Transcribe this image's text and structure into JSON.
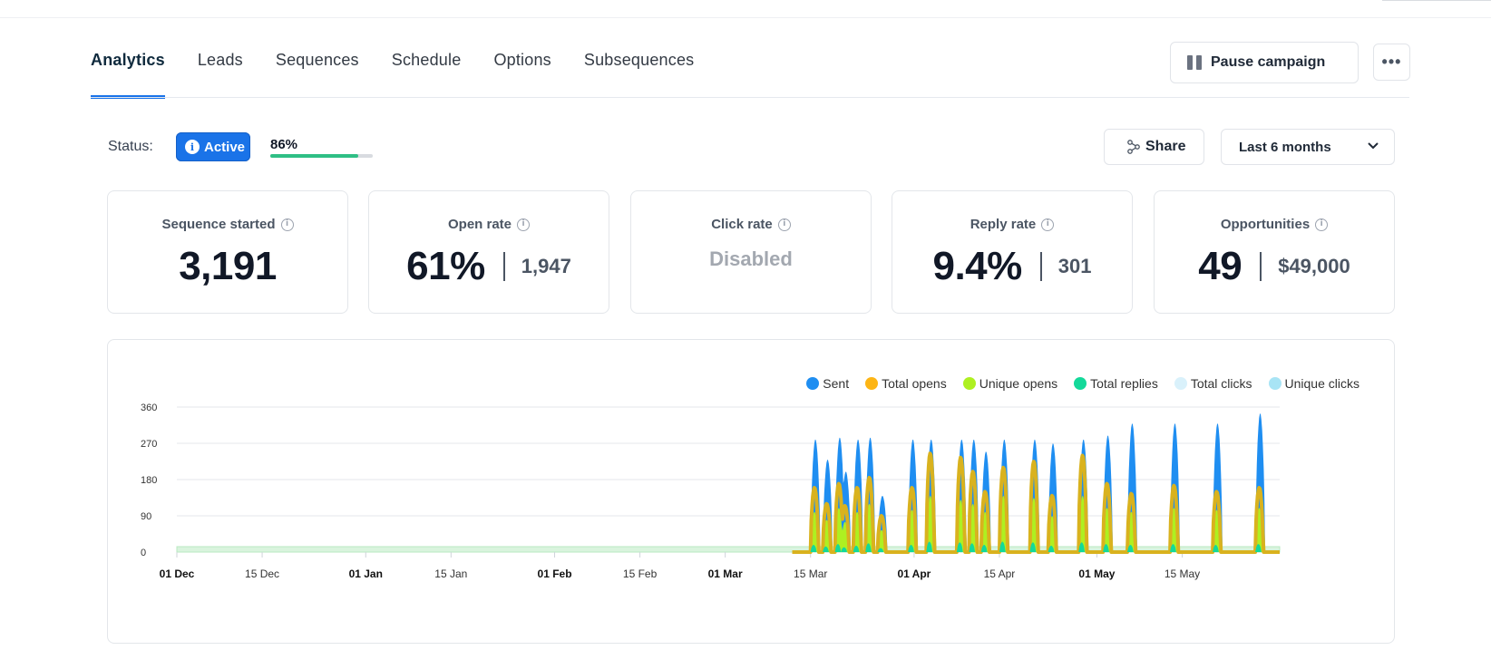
{
  "tabs": [
    {
      "label": "Analytics",
      "active": true
    },
    {
      "label": "Leads",
      "active": false
    },
    {
      "label": "Sequences",
      "active": false
    },
    {
      "label": "Schedule",
      "active": false
    },
    {
      "label": "Options",
      "active": false
    },
    {
      "label": "Subsequences",
      "active": false
    }
  ],
  "header": {
    "pause_label": "Pause campaign",
    "more_label": "•••"
  },
  "status": {
    "label": "Status:",
    "badge": "Active",
    "progress_label": "86%",
    "progress_value": 86
  },
  "toolbar": {
    "share_label": "Share",
    "range_value": "Last 6 months"
  },
  "cards": {
    "sequence_started": {
      "label": "Sequence started",
      "value": "3,191"
    },
    "open_rate": {
      "label": "Open rate",
      "value": "61%",
      "secondary": "1,947"
    },
    "click_rate": {
      "label": "Click rate",
      "value": "Disabled"
    },
    "reply_rate": {
      "label": "Reply rate",
      "value": "9.4%",
      "secondary": "301"
    },
    "opportunities": {
      "label": "Opportunities",
      "value": "49",
      "secondary": "$49,000"
    }
  },
  "colors": {
    "accent": "#1a73e8",
    "progress": "#2fbf85",
    "sent": "#1f8ef1",
    "total_opens": "#fdb515",
    "unique_opens": "#aef021",
    "total_replies": "#14d99a",
    "total_clicks": "#d9f1fb",
    "unique_clicks": "#a8e4f5"
  },
  "chart_data": {
    "type": "area",
    "legend_position": "top-right",
    "grid": true,
    "series": [
      {
        "name": "Sent",
        "color": "#1f8ef1"
      },
      {
        "name": "Total opens",
        "color": "#fdb515"
      },
      {
        "name": "Unique opens",
        "color": "#aef021"
      },
      {
        "name": "Total replies",
        "color": "#14d99a"
      },
      {
        "name": "Total clicks",
        "color": "#d9f1fb"
      },
      {
        "name": "Unique clicks",
        "color": "#a8e4f5"
      }
    ],
    "yticks": [
      0,
      90,
      180,
      270,
      360
    ],
    "ylim": [
      0,
      360
    ],
    "xticks": [
      {
        "label": "01 Dec",
        "bold": true
      },
      {
        "label": "15 Dec",
        "bold": false
      },
      {
        "label": "01 Jan",
        "bold": true
      },
      {
        "label": "15 Jan",
        "bold": false
      },
      {
        "label": "01 Feb",
        "bold": true
      },
      {
        "label": "15 Feb",
        "bold": false
      },
      {
        "label": "01 Mar",
        "bold": true
      },
      {
        "label": "15 Mar",
        "bold": false
      },
      {
        "label": "01 Apr",
        "bold": true
      },
      {
        "label": "15 Apr",
        "bold": false
      },
      {
        "label": "01 May",
        "bold": true
      },
      {
        "label": "15 May",
        "bold": false
      }
    ],
    "bursts": [
      {
        "start": "2023-03-15",
        "sent": 280,
        "opens": 160,
        "unique": 100,
        "replies": 18
      },
      {
        "start": "2023-03-17",
        "sent": 230,
        "opens": 120,
        "unique": 80,
        "replies": 14
      },
      {
        "start": "2023-03-19",
        "sent": 285,
        "opens": 170,
        "unique": 110,
        "replies": 20
      },
      {
        "start": "2023-03-20",
        "sent": 200,
        "opens": 115,
        "unique": 75,
        "replies": 12
      },
      {
        "start": "2023-03-22",
        "sent": 280,
        "opens": 160,
        "unique": 100,
        "replies": 16
      },
      {
        "start": "2023-03-24",
        "sent": 285,
        "opens": 185,
        "unique": 120,
        "replies": 22
      },
      {
        "start": "2023-03-26",
        "sent": 140,
        "opens": 90,
        "unique": 55,
        "replies": 10
      },
      {
        "start": "2023-03-31",
        "sent": 280,
        "opens": 160,
        "unique": 105,
        "replies": 18
      },
      {
        "start": "2023-04-03",
        "sent": 280,
        "opens": 245,
        "unique": 140,
        "replies": 26
      },
      {
        "start": "2023-04-08",
        "sent": 280,
        "opens": 235,
        "unique": 130,
        "replies": 24
      },
      {
        "start": "2023-04-10",
        "sent": 280,
        "opens": 200,
        "unique": 120,
        "replies": 22
      },
      {
        "start": "2023-04-12",
        "sent": 250,
        "opens": 150,
        "unique": 100,
        "replies": 18
      },
      {
        "start": "2023-04-15",
        "sent": 280,
        "opens": 210,
        "unique": 140,
        "replies": 26
      },
      {
        "start": "2023-04-20",
        "sent": 280,
        "opens": 225,
        "unique": 135,
        "replies": 24
      },
      {
        "start": "2023-04-23",
        "sent": 270,
        "opens": 140,
        "unique": 90,
        "replies": 16
      },
      {
        "start": "2023-04-28",
        "sent": 280,
        "opens": 240,
        "unique": 140,
        "replies": 24
      },
      {
        "start": "2023-05-02",
        "sent": 290,
        "opens": 170,
        "unique": 110,
        "replies": 20
      },
      {
        "start": "2023-05-06",
        "sent": 320,
        "opens": 145,
        "unique": 100,
        "replies": 18
      },
      {
        "start": "2023-05-13",
        "sent": 320,
        "opens": 165,
        "unique": 110,
        "replies": 20
      },
      {
        "start": "2023-05-20",
        "sent": 320,
        "opens": 150,
        "unique": 105,
        "replies": 18
      },
      {
        "start": "2023-05-27",
        "sent": 345,
        "opens": 160,
        "unique": 110,
        "replies": 20
      }
    ]
  }
}
